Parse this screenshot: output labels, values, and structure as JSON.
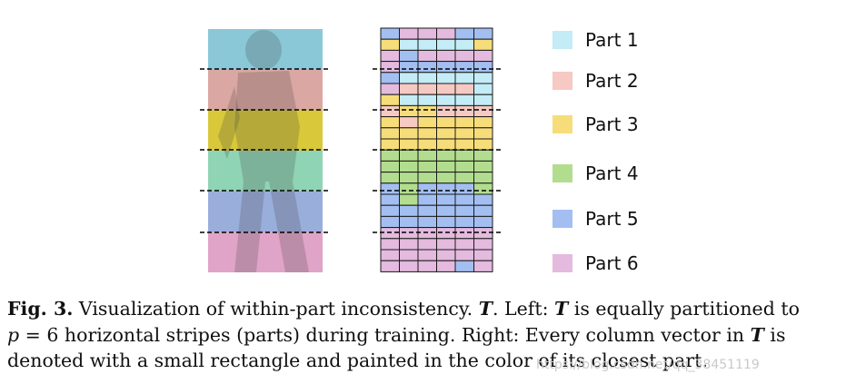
{
  "legend": [
    {
      "label": "Part 1",
      "color": "#c3ecf6"
    },
    {
      "label": "Part 2",
      "color": "#f6c9c2"
    },
    {
      "label": "Part 3",
      "color": "#f6dd79"
    },
    {
      "label": "Part 4",
      "color": "#b3dd8e"
    },
    {
      "label": "Part 5",
      "color": "#a3bff2"
    },
    {
      "label": "Part 6",
      "color": "#e4bade"
    }
  ],
  "stripe_tints": [
    "#8ac8d8",
    "#dba7a2",
    "#d8c83a",
    "#8fd4b4",
    "#9aaedc",
    "#e0a4c8"
  ],
  "grid_rows": [
    "566655",
    "311113",
    "656666",
    "655555",
    "511111",
    "622221",
    "311111",
    "233222",
    "323333",
    "333333",
    "333333",
    "444444",
    "444444",
    "444444",
    "545554",
    "545555",
    "555555",
    "555555",
    "666666",
    "666666",
    "666666",
    "666656"
  ],
  "caption": {
    "fig_label": "Fig. 3.",
    "l1_a": " Visualization of within-part inconsistency. ",
    "T": "T",
    "l1_b": ". Left: ",
    "l1_c": " is equally partitioned to",
    "p": "p",
    "l2_a": " = 6 horizontal stripes (parts) during training. Right: Every column vector in ",
    "l2_b": " is",
    "l3": "denoted with a small rectangle and painted in the color of its closest part."
  },
  "watermark": "https://blog.csdn.net/qq_38451119"
}
